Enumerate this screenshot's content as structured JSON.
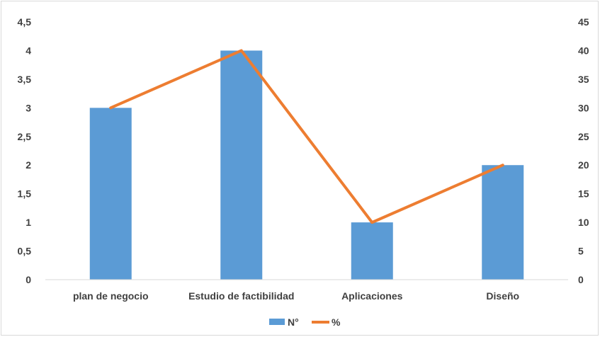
{
  "chart_data": {
    "type": "bar",
    "categories": [
      "plan de negocio",
      "Estudio de factibilidad",
      "Aplicaciones",
      "Diseño"
    ],
    "series": [
      {
        "name": "N°",
        "type": "bar",
        "axis": "left",
        "values": [
          3,
          4,
          1,
          2
        ],
        "color": "#5b9bd5"
      },
      {
        "name": "%",
        "type": "line",
        "axis": "right",
        "values": [
          30,
          40,
          10,
          20
        ],
        "color": "#ed7d31"
      }
    ],
    "y_left": {
      "min": 0,
      "max": 4.5,
      "step": 0.5,
      "tick_labels": [
        "0",
        "0,5",
        "1",
        "1,5",
        "2",
        "2,5",
        "3",
        "3,5",
        "4",
        "4,5"
      ]
    },
    "y_right": {
      "min": 0,
      "max": 45,
      "step": 5,
      "tick_labels": [
        "0",
        "5",
        "10",
        "15",
        "20",
        "25",
        "30",
        "35",
        "40",
        "45"
      ]
    },
    "grid": false,
    "legend": "bottom-center",
    "axis_color": "#d9d9d9"
  }
}
